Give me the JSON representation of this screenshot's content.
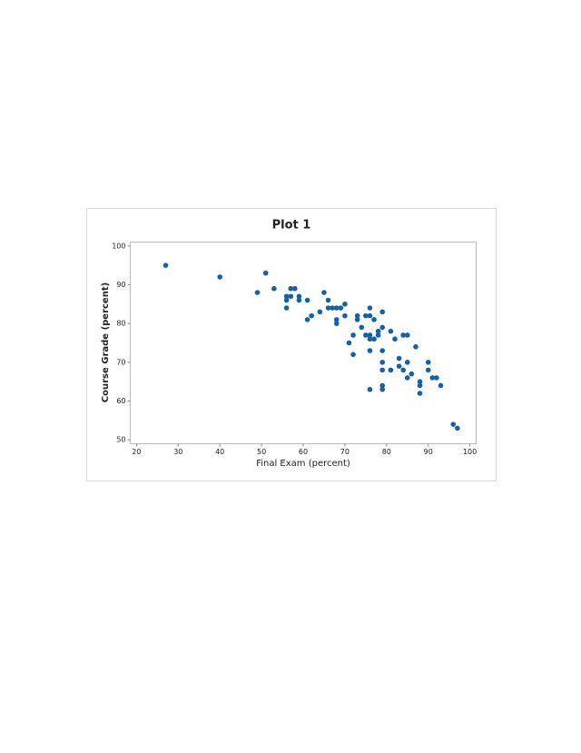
{
  "chart_data": {
    "type": "scatter",
    "title": "Plot 1",
    "x_label": "Final Exam (percent)",
    "y_label": "Course Grade (percent)",
    "color": "#1660a8",
    "x": [
      27,
      40,
      51,
      49,
      53,
      56,
      57,
      57,
      58,
      56,
      56,
      59,
      59,
      61,
      62,
      61,
      64,
      65,
      66,
      66,
      67,
      68,
      69,
      68,
      68,
      70,
      70,
      71,
      72,
      72,
      73,
      73,
      74,
      75,
      76,
      76,
      75,
      76,
      76,
      77,
      76,
      76,
      77,
      78,
      78,
      79,
      79,
      79,
      79,
      79,
      79,
      79,
      81,
      81,
      82,
      83,
      83,
      84,
      85,
      84,
      85,
      85,
      86,
      87,
      88,
      88,
      88,
      90,
      90,
      91,
      92,
      93,
      96,
      97
    ],
    "values": [
      95,
      92,
      93,
      88,
      89,
      87,
      87,
      89,
      89,
      86,
      84,
      87,
      86,
      86,
      82,
      81,
      83,
      88,
      86,
      84,
      84,
      84,
      84,
      81,
      80,
      85,
      82,
      75,
      77,
      72,
      82,
      81,
      79,
      82,
      84,
      82,
      77,
      77,
      76,
      76,
      73,
      63,
      81,
      78,
      77,
      83,
      79,
      73,
      70,
      68,
      64,
      63,
      78,
      68,
      76,
      71,
      69,
      77,
      77,
      68,
      70,
      66,
      67,
      74,
      65,
      64,
      62,
      70,
      68,
      66,
      66,
      64,
      54,
      53
    ],
    "xlim": [
      18.5,
      101.5
    ],
    "ylim": [
      49,
      101
    ],
    "xticks": [
      20,
      30,
      40,
      50,
      60,
      70,
      80,
      90,
      100
    ],
    "yticks": [
      50,
      60,
      70,
      80,
      90,
      100
    ]
  }
}
